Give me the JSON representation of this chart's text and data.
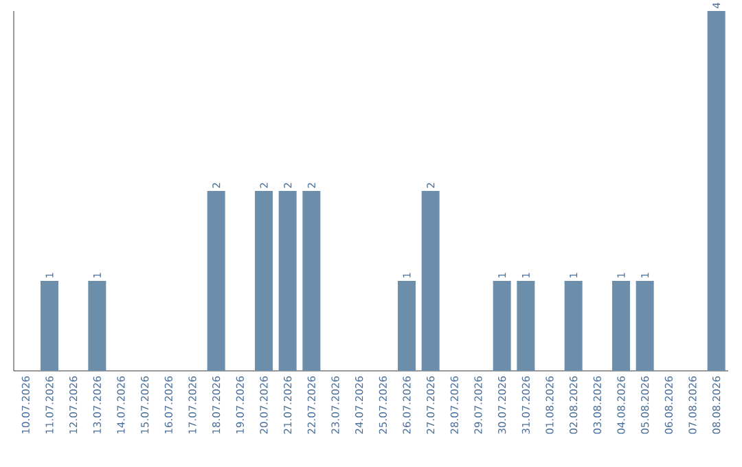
{
  "chart_data": {
    "type": "bar",
    "categories": [
      "10.07.2026",
      "11.07.2026",
      "12.07.2026",
      "13.07.2026",
      "14.07.2026",
      "15.07.2026",
      "16.07.2026",
      "17.07.2026",
      "18.07.2026",
      "19.07.2026",
      "20.07.2026",
      "21.07.2026",
      "22.07.2026",
      "23.07.2026",
      "24.07.2026",
      "25.07.2026",
      "26.07.2026",
      "27.07.2026",
      "28.07.2026",
      "29.07.2026",
      "30.07.2026",
      "31.07.2026",
      "01.08.2026",
      "02.08.2026",
      "03.08.2026",
      "04.08.2026",
      "05.08.2026",
      "06.08.2026",
      "07.08.2026",
      "08.08.2026"
    ],
    "values": [
      0,
      1,
      0,
      1,
      0,
      0,
      0,
      0,
      2,
      0,
      2,
      2,
      2,
      0,
      0,
      0,
      1,
      2,
      0,
      0,
      1,
      1,
      0,
      1,
      0,
      1,
      1,
      0,
      0,
      4
    ],
    "value_labels": [
      null,
      "1",
      null,
      "1",
      null,
      null,
      null,
      null,
      "2",
      null,
      "2",
      "2",
      "2",
      null,
      null,
      null,
      "1",
      "2",
      null,
      null,
      "1",
      "1",
      null,
      "1",
      null,
      "1",
      "1",
      null,
      null,
      "4"
    ],
    "color": "#6d8eab",
    "tick_labels": "x"
  }
}
